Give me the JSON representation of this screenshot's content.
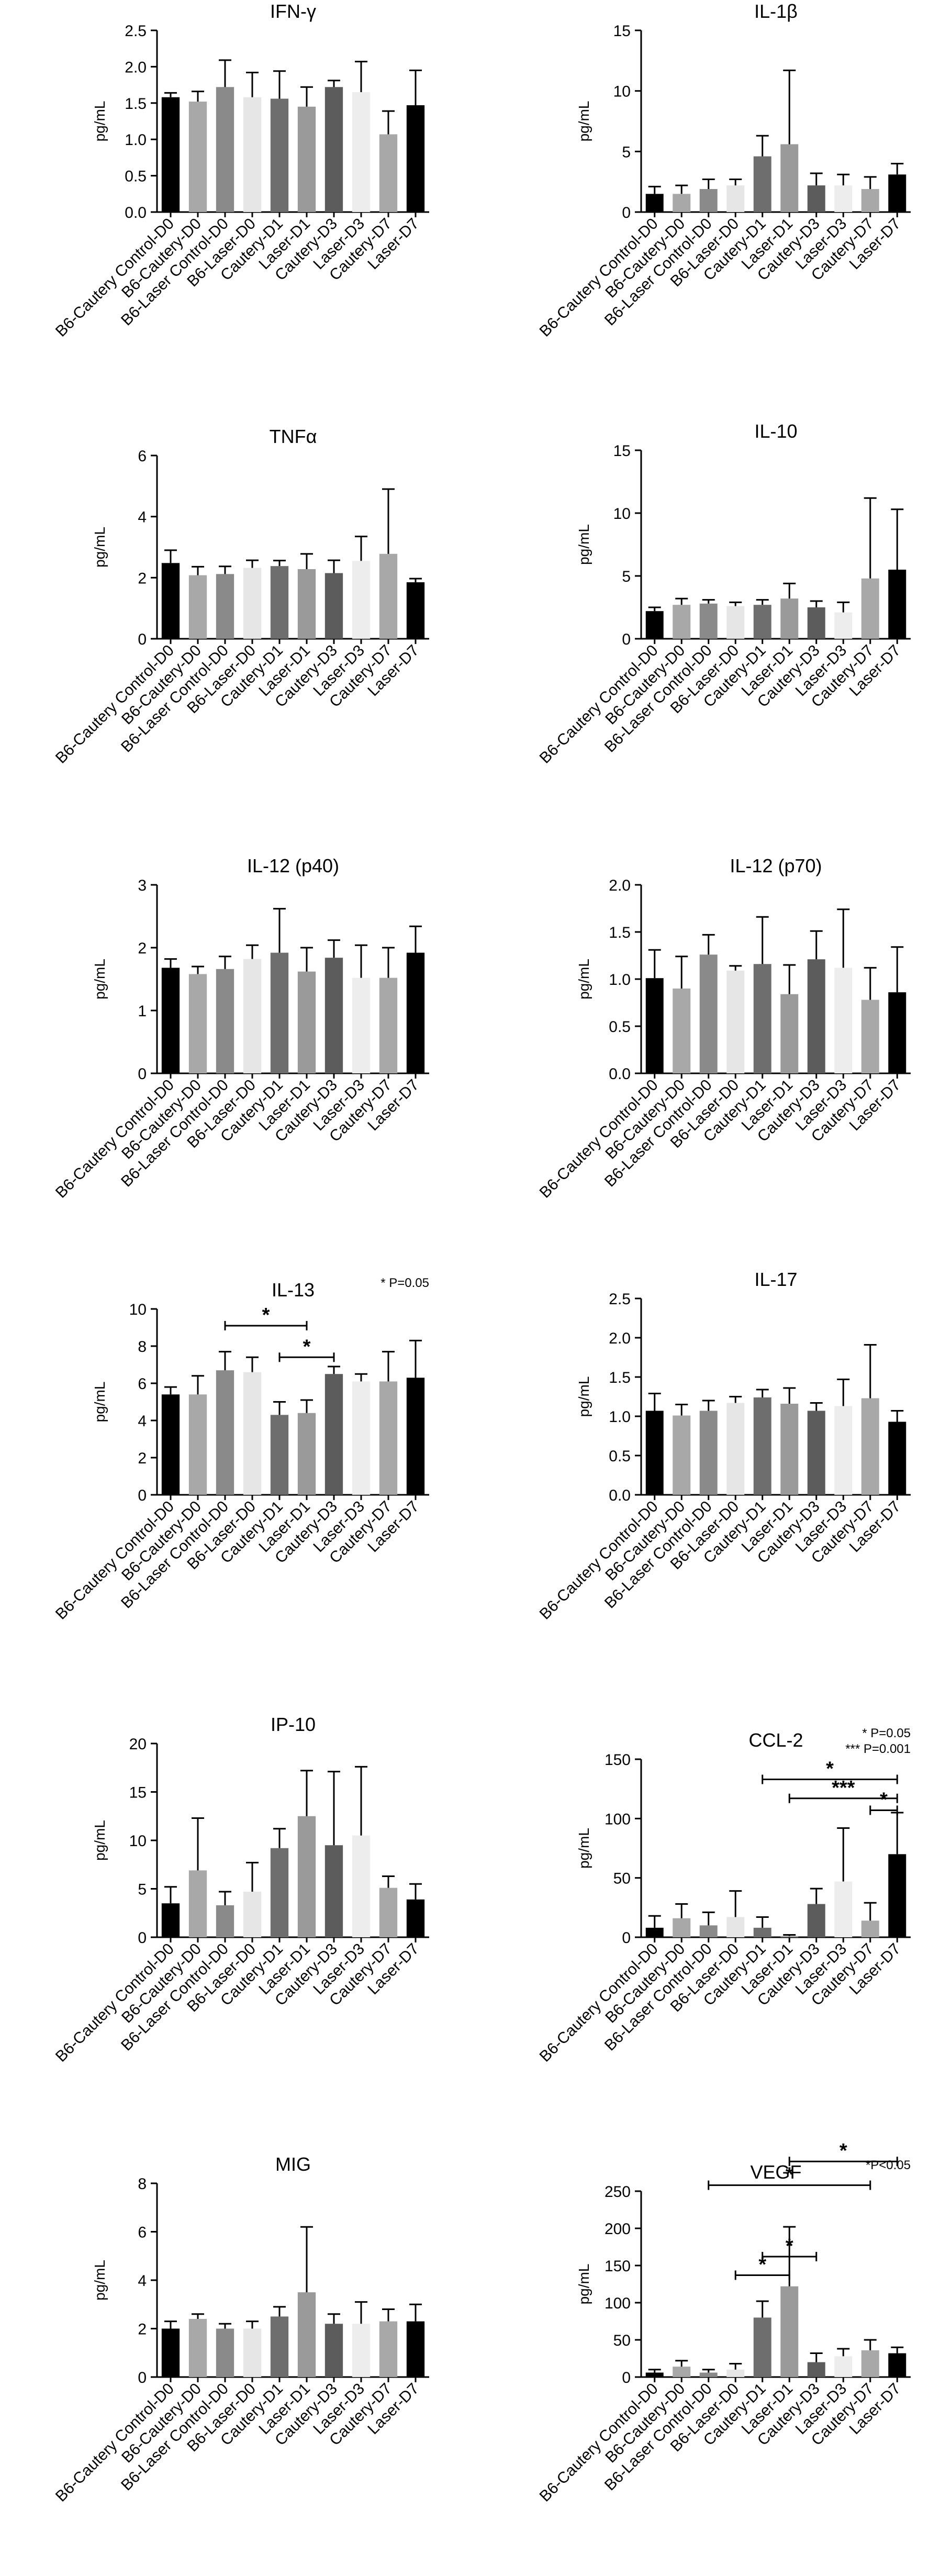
{
  "categories": [
    "B6-Cautery Control-D0",
    "B6-Cautery-D0",
    "B6-Laser Control-D0",
    "B6-Laser-D0",
    "Cautery-D1",
    "Laser-D1",
    "Cautery-D3",
    "Laser-D3",
    "Cautery-D7",
    "Laser-D7"
  ],
  "bar_colors": [
    "#000000",
    "#a8a8a8",
    "#8a8a8a",
    "#e6e6e6",
    "#6e6e6e",
    "#9a9a9a",
    "#5c5c5c",
    "#ededed",
    "#a8a8a8",
    "#000000"
  ],
  "chart_data": [
    {
      "type": "bar",
      "title": "IFN-γ",
      "ylabel": "pg/mL",
      "ylim": [
        0,
        2.5
      ],
      "yticks": [
        "0.0",
        "0.5",
        "1.0",
        "1.5",
        "2.0",
        "2.5"
      ],
      "series": [
        {
          "values": [
            1.58,
            1.52,
            1.72,
            1.58,
            1.56,
            1.45,
            1.72,
            1.65,
            1.07,
            1.47
          ],
          "errors": [
            0.06,
            0.14,
            0.37,
            0.34,
            0.38,
            0.27,
            0.09,
            0.42,
            0.32,
            0.48
          ]
        }
      ],
      "significance": [],
      "note": ""
    },
    {
      "type": "bar",
      "title": "IL-1β",
      "ylabel": "pg/mL",
      "ylim": [
        0,
        15
      ],
      "yticks": [
        "0",
        "5",
        "10",
        "15"
      ],
      "series": [
        {
          "values": [
            1.5,
            1.5,
            1.9,
            2.2,
            4.6,
            5.6,
            2.2,
            2.2,
            1.9,
            3.1
          ],
          "errors": [
            0.6,
            0.7,
            0.8,
            0.5,
            1.7,
            6.1,
            1.0,
            0.9,
            1.0,
            0.9
          ]
        }
      ],
      "significance": [],
      "note": ""
    },
    {
      "type": "bar",
      "title": "TNFα",
      "ylabel": "pg/mL",
      "ylim": [
        0,
        6
      ],
      "yticks": [
        "0",
        "2",
        "4",
        "6"
      ],
      "series": [
        {
          "values": [
            2.48,
            2.08,
            2.12,
            2.32,
            2.38,
            2.28,
            2.15,
            2.55,
            2.78,
            1.85
          ],
          "errors": [
            0.42,
            0.28,
            0.25,
            0.25,
            0.18,
            0.5,
            0.42,
            0.8,
            2.12,
            0.12
          ]
        }
      ],
      "significance": [],
      "note": ""
    },
    {
      "type": "bar",
      "title": "IL-10",
      "ylabel": "pg/mL",
      "ylim": [
        0,
        15
      ],
      "yticks": [
        "0",
        "5",
        "10",
        "15"
      ],
      "series": [
        {
          "values": [
            2.2,
            2.7,
            2.8,
            2.6,
            2.7,
            3.2,
            2.5,
            2.1,
            4.8,
            5.5
          ],
          "errors": [
            0.3,
            0.5,
            0.3,
            0.3,
            0.4,
            1.2,
            0.5,
            0.8,
            6.4,
            4.8
          ]
        }
      ],
      "significance": [],
      "note": ""
    },
    {
      "type": "bar",
      "title": "IL-12 (p40)",
      "ylabel": "pg/mL",
      "ylim": [
        0,
        3
      ],
      "yticks": [
        "0",
        "1",
        "2",
        "3"
      ],
      "series": [
        {
          "values": [
            1.68,
            1.58,
            1.66,
            1.82,
            1.92,
            1.62,
            1.84,
            1.52,
            1.52,
            1.92
          ],
          "errors": [
            0.14,
            0.12,
            0.2,
            0.22,
            0.7,
            0.38,
            0.28,
            0.52,
            0.48,
            0.42
          ]
        }
      ],
      "significance": [],
      "note": ""
    },
    {
      "type": "bar",
      "title": "IL-12 (p70)",
      "ylabel": "pg/mL",
      "ylim": [
        0,
        2
      ],
      "yticks": [
        "0.0",
        "0.5",
        "1.0",
        "1.5",
        "2.0"
      ],
      "series": [
        {
          "values": [
            1.01,
            0.9,
            1.26,
            1.09,
            1.16,
            0.84,
            1.21,
            1.12,
            0.78,
            0.86
          ],
          "errors": [
            0.3,
            0.34,
            0.21,
            0.05,
            0.5,
            0.31,
            0.3,
            0.62,
            0.34,
            0.48
          ]
        }
      ],
      "significance": [],
      "note": ""
    },
    {
      "type": "bar",
      "title": "IL-13",
      "ylabel": "pg/mL",
      "ylim": [
        0,
        10
      ],
      "yticks": [
        "0",
        "2",
        "4",
        "6",
        "8",
        "10"
      ],
      "series": [
        {
          "values": [
            5.4,
            5.4,
            6.7,
            6.6,
            4.3,
            4.4,
            6.5,
            6.1,
            6.1,
            6.3
          ],
          "errors": [
            0.4,
            1.0,
            1.0,
            0.8,
            0.7,
            0.7,
            0.4,
            0.4,
            1.6,
            2.0
          ]
        }
      ],
      "significance": [
        {
          "from": 2,
          "to": 5,
          "y": 9.1,
          "label": "*"
        },
        {
          "from": 4,
          "to": 6,
          "y": 7.4,
          "label": "*"
        }
      ],
      "note": "* P=0.05"
    },
    {
      "type": "bar",
      "title": "IL-17",
      "ylabel": "pg/mL",
      "ylim": [
        0,
        2.5
      ],
      "yticks": [
        "0.0",
        "0.5",
        "1.0",
        "1.5",
        "2.0",
        "2.5"
      ],
      "series": [
        {
          "values": [
            1.07,
            1.01,
            1.07,
            1.17,
            1.24,
            1.16,
            1.07,
            1.13,
            1.23,
            0.93
          ],
          "errors": [
            0.22,
            0.14,
            0.13,
            0.08,
            0.1,
            0.2,
            0.1,
            0.34,
            0.68,
            0.14
          ]
        }
      ],
      "significance": [],
      "note": ""
    },
    {
      "type": "bar",
      "title": "IP-10",
      "ylabel": "pg/mL",
      "ylim": [
        0,
        20
      ],
      "yticks": [
        "0",
        "5",
        "10",
        "15",
        "20"
      ],
      "series": [
        {
          "values": [
            3.5,
            6.9,
            3.3,
            4.7,
            9.2,
            12.5,
            9.5,
            10.5,
            5.1,
            3.9
          ],
          "errors": [
            1.7,
            5.4,
            1.4,
            3.0,
            2.0,
            4.7,
            7.6,
            7.1,
            1.2,
            1.6
          ]
        }
      ],
      "significance": [],
      "note": ""
    },
    {
      "type": "bar",
      "title": "CCL-2",
      "ylabel": "pg/mL",
      "ylim": [
        0,
        150
      ],
      "yticks": [
        "0",
        "50",
        "100",
        "150"
      ],
      "series": [
        {
          "values": [
            8,
            16,
            10,
            17,
            8,
            1,
            28,
            47,
            14,
            70
          ],
          "errors": [
            10,
            12,
            11,
            22,
            9,
            1,
            13,
            45,
            15,
            35
          ]
        }
      ],
      "significance": [
        {
          "from": 4,
          "to": 9,
          "y": 133,
          "label": "*"
        },
        {
          "from": 5,
          "to": 9,
          "y": 117,
          "label": "***"
        },
        {
          "from": 8,
          "to": 9,
          "y": 107,
          "label": "*"
        }
      ],
      "note": "* P=0.05\n*** P=0.001"
    },
    {
      "type": "bar",
      "title": "MIG",
      "ylabel": "pg/mL",
      "ylim": [
        0,
        8
      ],
      "yticks": [
        "0",
        "2",
        "4",
        "6",
        "8"
      ],
      "series": [
        {
          "values": [
            2.0,
            2.4,
            2.0,
            2.0,
            2.5,
            3.5,
            2.2,
            2.2,
            2.3,
            2.3
          ],
          "errors": [
            0.3,
            0.2,
            0.2,
            0.3,
            0.4,
            2.7,
            0.4,
            0.9,
            0.5,
            0.7
          ]
        }
      ],
      "significance": [],
      "note": ""
    },
    {
      "type": "bar",
      "title": "VEGF",
      "ylabel": "pg/mL",
      "ylim": [
        0,
        250
      ],
      "yticks": [
        "0",
        "50",
        "100",
        "150",
        "200",
        "250"
      ],
      "series": [
        {
          "values": [
            6,
            14,
            6,
            10,
            80,
            122,
            20,
            28,
            36,
            32
          ],
          "errors": [
            4,
            8,
            4,
            8,
            22,
            80,
            12,
            10,
            14,
            8
          ]
        }
      ],
      "significance": [
        {
          "from": 3,
          "to": 5,
          "y": 137,
          "label": "*"
        },
        {
          "from": 4,
          "to": 6,
          "y": 162,
          "label": "*"
        },
        {
          "from": 2,
          "to": 8,
          "y": 258,
          "label": "*"
        },
        {
          "from": 5,
          "to": 9,
          "y": 290,
          "label": "*"
        }
      ],
      "note": "*P<0.05"
    }
  ]
}
